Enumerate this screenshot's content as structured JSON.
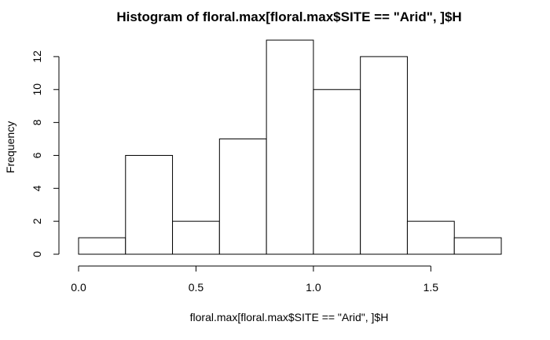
{
  "chart_data": {
    "type": "bar",
    "title": "Histogram of floral.max[floral.max$SITE == \"Arid\", ]$H",
    "xlabel": "floral.max[floral.max$SITE == \"Arid\", ]$H",
    "ylabel": "Frequency",
    "bin_edges": [
      0.0,
      0.2,
      0.4,
      0.6,
      0.8,
      1.0,
      1.2,
      1.4,
      1.6,
      1.8
    ],
    "values": [
      1,
      6,
      2,
      7,
      13,
      10,
      12,
      2,
      1
    ],
    "xticks": [
      "0.0",
      "0.5",
      "1.0",
      "1.5"
    ],
    "xtick_values": [
      0.0,
      0.5,
      1.0,
      1.5
    ],
    "yticks": [
      "0",
      "2",
      "4",
      "6",
      "8",
      "10",
      "12"
    ],
    "ytick_values": [
      0,
      2,
      4,
      6,
      8,
      10,
      12
    ],
    "xlim": [
      0.0,
      1.8
    ],
    "ylim": [
      0,
      13
    ],
    "grid": false,
    "bar_fill": "#ffffff",
    "bar_stroke": "#000000"
  }
}
